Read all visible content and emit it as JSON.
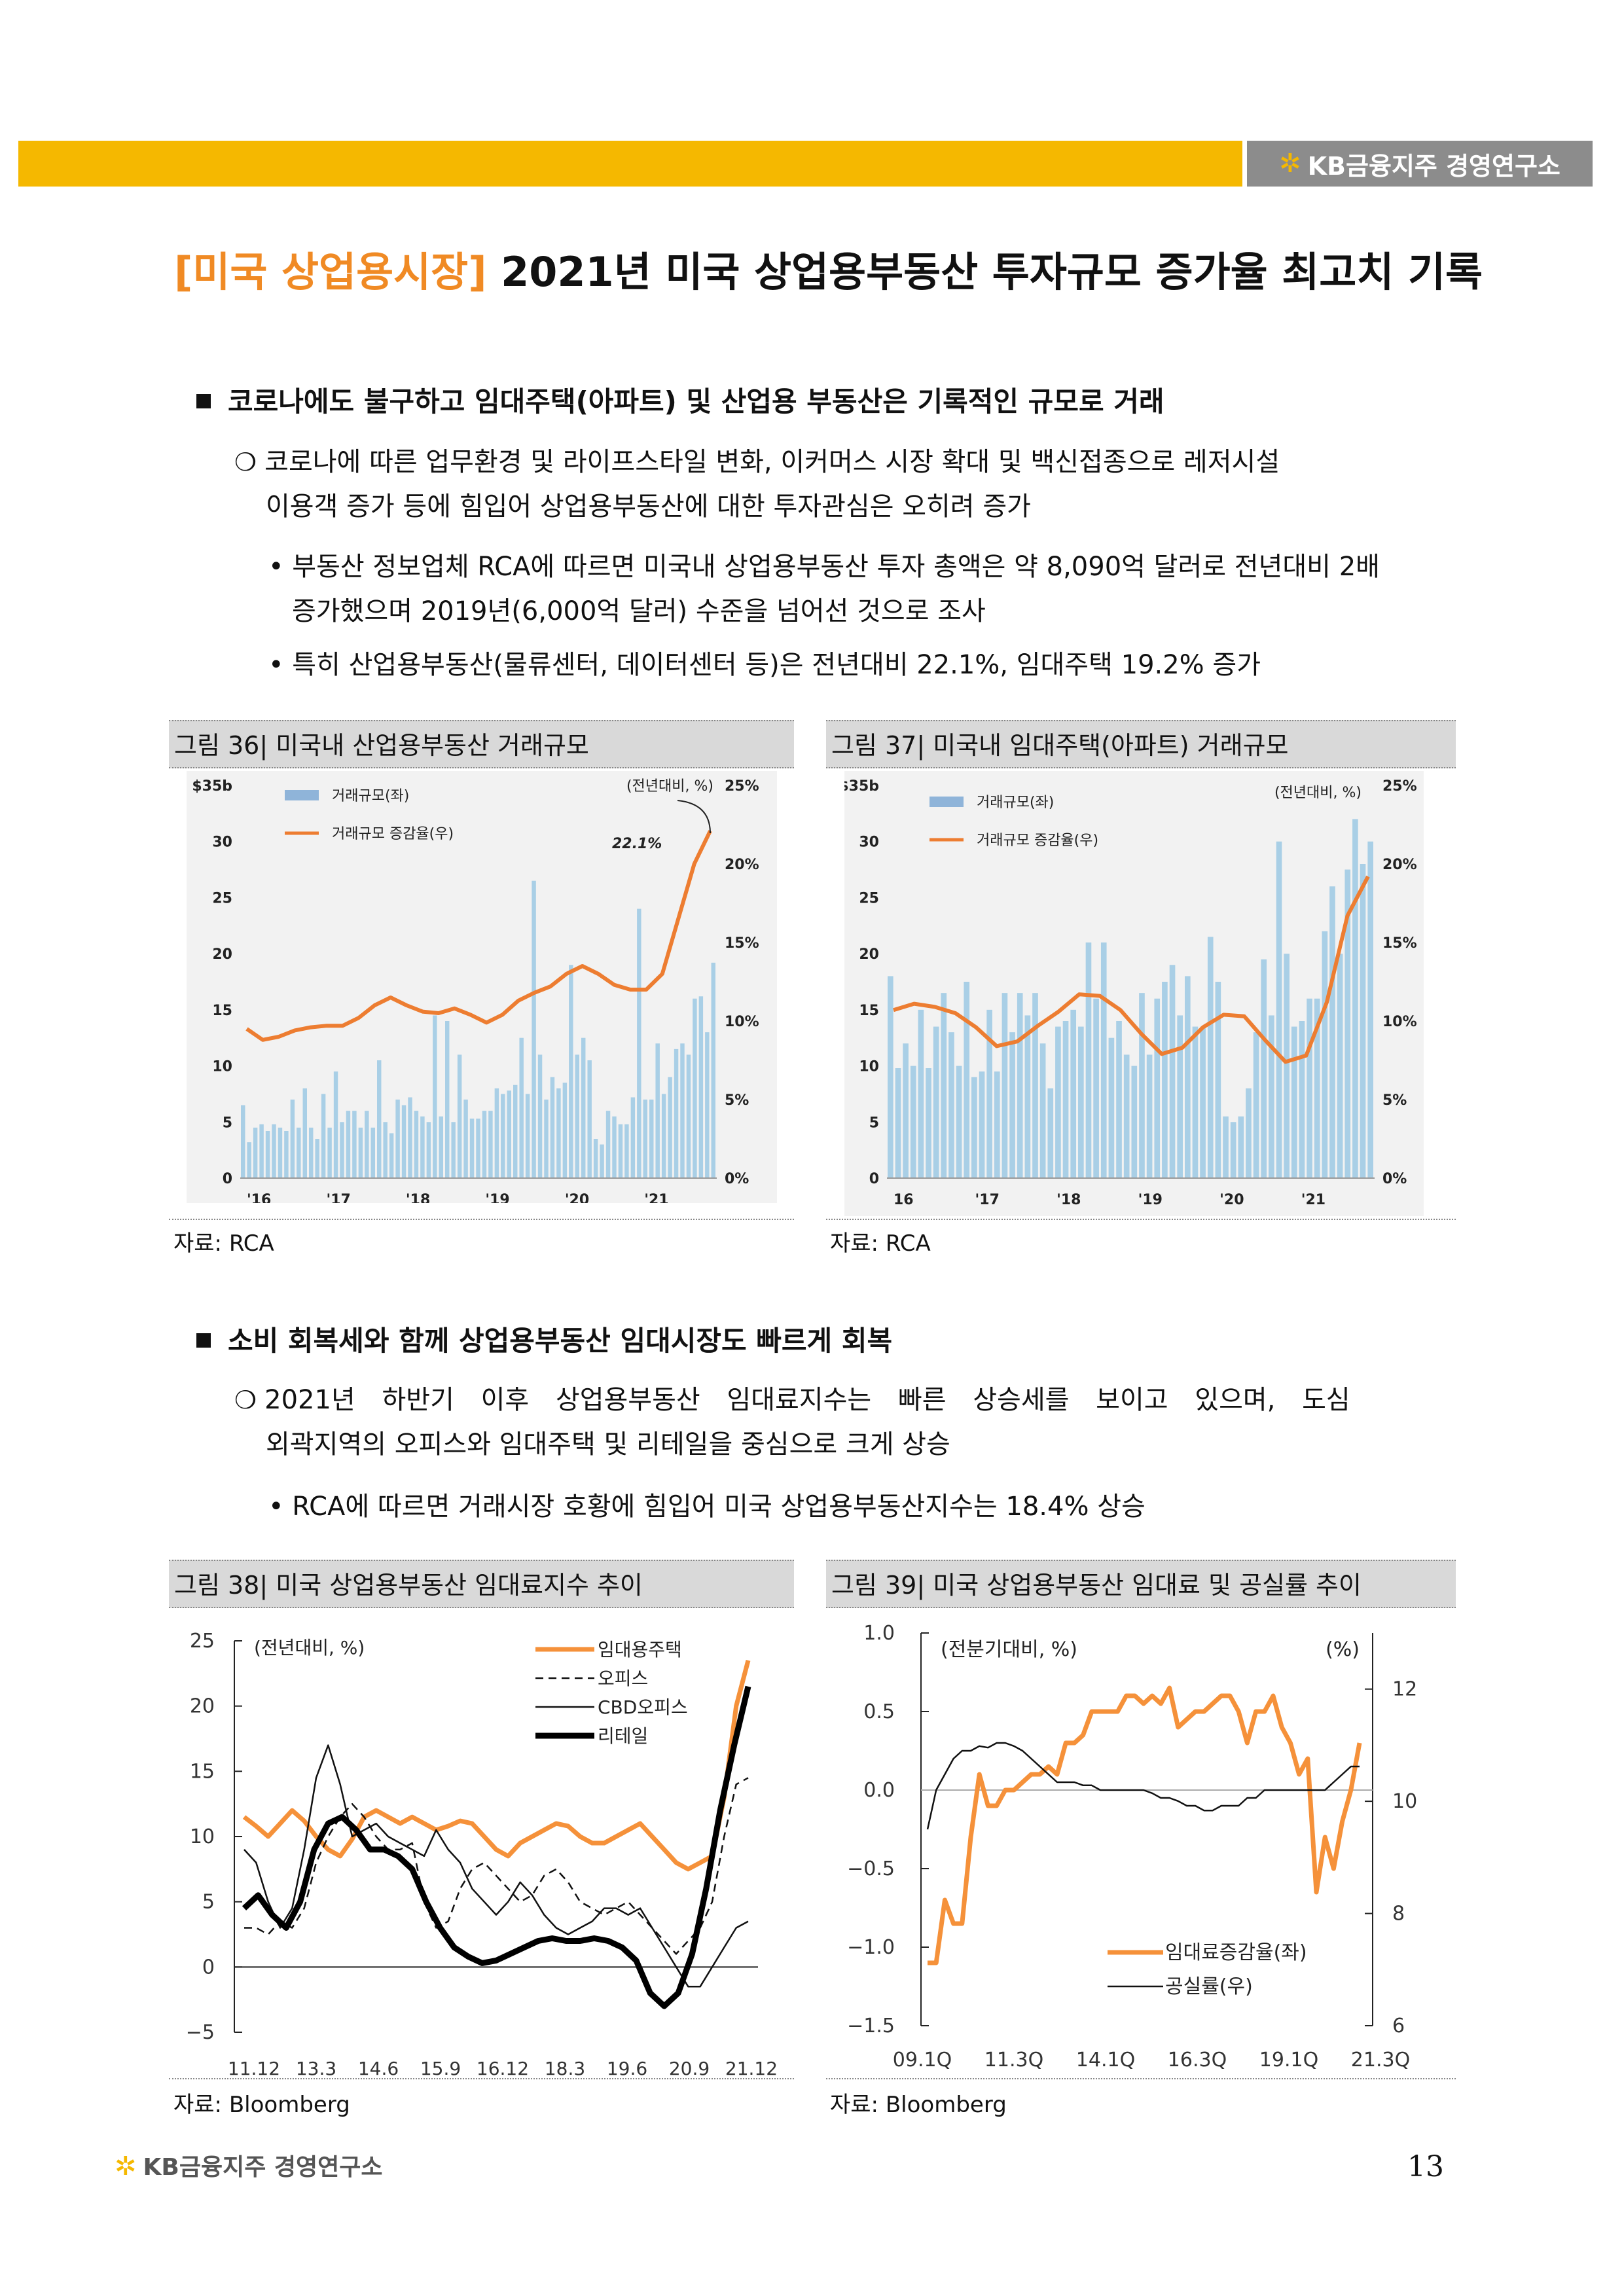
{
  "header": {
    "brand": "KB금융지주 경영연구소"
  },
  "title": {
    "tag": "[미국 상업용시장]",
    "main": " 2021년 미국 상업용부동산 투자규모 증가율 최고치 기록"
  },
  "section1": {
    "heading": "코로나에도 불구하고 임대주택(아파트) 및 산업용 부동산은 기록적인 규모로 거래",
    "para_line1": "코로나에 따른 업무환경 및 라이프스타일 변화, 이커머스 시장 확대 및 백신접종으로 레저시설",
    "para_line2": "이용객 증가 등에 힘입어 상업용부동산에 대한 투자관심은 오히려 증가",
    "bullet1_line1": "• 부동산 정보업체 RCA에 따르면 미국내 상업용부동산 투자 총액은 약 8,090억 달러로 전년대비 2배",
    "bullet1_line2": "증가했으며 2019년(6,000억 달러) 수준을 넘어선 것으로 조사",
    "bullet2": "• 특히 산업용부동산(물류센터, 데이터센터 등)은 전년대비 22.1%, 임대주택 19.2% 증가"
  },
  "fig36": {
    "caption": "그림 36| 미국내 산업용부동산 거래규모",
    "source": "자료: RCA"
  },
  "fig37": {
    "caption": "그림 37| 미국내 임대주택(아파트) 거래규모",
    "source": "자료: RCA"
  },
  "section2": {
    "heading": "소비 회복세와 함께 상업용부동산 임대시장도 빠르게 회복",
    "para_line1": "2021년 하반기 이후 상업용부동산 임대료지수는 빠른 상승세를 보이고 있으며, 도심",
    "para_line2": "외곽지역의 오피스와 임대주택 및 리테일을 중심으로 크게 상승",
    "bullet1": "• RCA에 따르면 거래시장 호황에 힘입어 미국 상업용부동산지수는 18.4% 상승"
  },
  "fig38": {
    "caption": "그림 38| 미국 상업용부동산 임대료지수 추이",
    "source": "자료: Bloomberg"
  },
  "fig39": {
    "caption": "그림 39| 미국 상업용부동산 임대료 및 공실률 추이",
    "source": "자료: Bloomberg"
  },
  "footer": {
    "brand": "KB금융지주 경영연구소",
    "page": "13"
  },
  "chart_data": [
    {
      "id": "fig36",
      "type": "bar+line",
      "x_ticks": [
        "'16",
        "'17",
        "'18",
        "'19",
        "'20",
        "'21"
      ],
      "left_ticks": [
        "$35b",
        "30",
        "25",
        "20",
        "15",
        "10",
        "5",
        "0"
      ],
      "right_ticks": [
        "25%",
        "20%",
        "15%",
        "10%",
        "5%",
        "0%"
      ],
      "ylim_left": [
        0,
        35
      ],
      "ylim_right": [
        0,
        25
      ],
      "unit_note": "(전년대비, %)",
      "annotation": "22.1%",
      "legend": [
        "거래규모(좌)",
        "거래규모 증감율(우)"
      ],
      "colors": {
        "bar": "#a9cfe6",
        "line": "#ed7d31",
        "legend_bar": "#8fb4d9"
      },
      "bars": [
        6.5,
        3.2,
        4.5,
        4.8,
        4.2,
        4.8,
        4.5,
        4.2,
        7,
        4.5,
        8,
        4.5,
        3.5,
        7.5,
        4.5,
        9.5,
        5,
        6,
        6,
        4.5,
        6,
        4.5,
        10.5,
        5,
        4,
        7,
        6.5,
        7.2,
        6,
        5.5,
        5,
        14.5,
        5.5,
        14,
        5,
        11,
        7,
        5.3,
        5.3,
        6,
        6,
        8,
        7.5,
        7.8,
        8.3,
        12.5,
        7.5,
        26.5,
        11,
        7,
        9,
        8,
        8.5,
        19,
        11,
        12.5,
        10.5,
        3.5,
        3,
        6,
        5.5,
        4.8,
        4.8,
        7.2,
        24,
        7,
        7,
        12,
        7.5,
        9,
        11.5,
        12,
        11,
        16,
        16.2,
        13,
        19.2
      ],
      "line": [
        9.5,
        8.8,
        9.0,
        9.4,
        9.6,
        9.7,
        9.7,
        10.2,
        11.0,
        11.5,
        11.0,
        10.6,
        10.5,
        10.8,
        10.4,
        9.9,
        10.4,
        11.3,
        11.8,
        12.2,
        13.0,
        13.5,
        13.0,
        12.3,
        12.0,
        12.0,
        13.0,
        16.5,
        20.0,
        22.1
      ]
    },
    {
      "id": "fig37",
      "type": "bar+line",
      "x_ticks": [
        "16",
        "'17",
        "'18",
        "'19",
        "'20",
        "'21"
      ],
      "left_ticks": [
        "$35b",
        "30",
        "25",
        "20",
        "15",
        "10",
        "5",
        "0"
      ],
      "right_ticks": [
        "25%",
        "20%",
        "15%",
        "10%",
        "5%",
        "0%"
      ],
      "ylim_left": [
        0,
        35
      ],
      "ylim_right": [
        0,
        25
      ],
      "unit_note": "(전년대비, %)",
      "legend": [
        "거래규모(좌)",
        "거래규모 증감율(우)"
      ],
      "colors": {
        "bar": "#a9cfe6",
        "line": "#ed7d31",
        "legend_bar": "#8fb4d9"
      },
      "bars": [
        18,
        9.8,
        12,
        10,
        15,
        9.8,
        13.5,
        16.5,
        13,
        10,
        17.5,
        9,
        9.5,
        15,
        9.5,
        16.5,
        13,
        16.5,
        14.5,
        16.5,
        12,
        8,
        13.5,
        14,
        15,
        13.5,
        21,
        16,
        21,
        12.5,
        14,
        11,
        10,
        16.5,
        11,
        16,
        17.5,
        19,
        14.5,
        18,
        13.5,
        13.5,
        21.5,
        17.5,
        5.5,
        5,
        5.5,
        8,
        13,
        19.5,
        14.5,
        30,
        20,
        13.5,
        14,
        16,
        16,
        22,
        26,
        20,
        27.5,
        32,
        28,
        30
      ],
      "line": [
        10.7,
        11.1,
        10.9,
        10.5,
        9.6,
        8.4,
        8.7,
        9.7,
        10.6,
        11.7,
        11.6,
        10.7,
        9.2,
        7.9,
        8.3,
        9.6,
        10.4,
        10.3,
        8.8,
        7.4,
        7.8,
        11.2,
        16.7,
        19.2
      ]
    },
    {
      "id": "fig38",
      "type": "line",
      "x_ticks": [
        "11.12",
        "13.3",
        "14.6",
        "15.9",
        "16.12",
        "18.3",
        "19.6",
        "20.9",
        "21.12"
      ],
      "y_ticks": [
        "25",
        "20",
        "15",
        "10",
        "5",
        "0",
        "−5"
      ],
      "ylim": [
        -5,
        25
      ],
      "unit_note": "(전년대비, %)",
      "series": [
        {
          "name": "임대용주택",
          "color": "#f5913a",
          "values": [
            11.5,
            10.8,
            10.0,
            11.0,
            12.0,
            11.2,
            10.0,
            9.0,
            8.5,
            9.8,
            11.5,
            12.0,
            11.5,
            11.0,
            11.5,
            11.0,
            10.5,
            10.8,
            11.2,
            11.0,
            10.0,
            9.0,
            8.5,
            9.5,
            10.0,
            10.5,
            11.0,
            10.8,
            10.0,
            9.5,
            9.5,
            10.0,
            10.5,
            11.0,
            10.0,
            9.0,
            8.0,
            7.5,
            8.0,
            8.5,
            13.0,
            20.0,
            23.5
          ]
        },
        {
          "name": "오피스",
          "color": "#111111",
          "dash": "12,8",
          "values": [
            3.0,
            3.0,
            2.5,
            3.5,
            3.0,
            4.5,
            8.0,
            10.0,
            11.5,
            12.5,
            11.5,
            10.0,
            9.0,
            9.0,
            9.5,
            5.0,
            3.0,
            3.5,
            6.0,
            7.5,
            8.0,
            7.0,
            6.0,
            5.0,
            5.5,
            7.0,
            7.5,
            6.5,
            5.0,
            4.5,
            4.0,
            4.5,
            5.0,
            4.0,
            3.0,
            2.0,
            1.0,
            2.0,
            3.0,
            5.0,
            10.0,
            14.0,
            14.5
          ]
        },
        {
          "name": "CBD오피스",
          "color": "#111111",
          "values": [
            9.0,
            8.0,
            5.0,
            3.0,
            4.5,
            9.0,
            14.5,
            17.0,
            14.0,
            10.0,
            10.5,
            11.0,
            10.0,
            9.5,
            9.0,
            8.5,
            10.5,
            9.0,
            8.0,
            6.0,
            5.0,
            4.0,
            5.0,
            6.5,
            5.5,
            4.0,
            3.0,
            2.5,
            3.0,
            3.5,
            4.5,
            4.5,
            4.0,
            4.5,
            3.0,
            1.5,
            0.0,
            -1.5,
            -1.5,
            0.0,
            1.5,
            3.0,
            3.5
          ]
        },
        {
          "name": "리테일",
          "color": "#000000",
          "bold": true,
          "values": [
            4.5,
            5.5,
            4.0,
            3.0,
            5.0,
            9.0,
            11.0,
            11.5,
            10.5,
            9.0,
            9.0,
            8.5,
            7.5,
            5.0,
            3.0,
            1.5,
            0.8,
            0.3,
            0.5,
            1.0,
            1.5,
            2.0,
            2.2,
            2.0,
            2.0,
            2.2,
            2.0,
            1.5,
            0.5,
            -2.0,
            -3.0,
            -2.0,
            1.0,
            6.0,
            12.0,
            17.0,
            21.5
          ]
        }
      ]
    },
    {
      "id": "fig39",
      "type": "line",
      "x_ticks": [
        "09.1Q",
        "11.3Q",
        "14.1Q",
        "16.3Q",
        "19.1Q",
        "21.3Q"
      ],
      "left_ticks": [
        "1.0",
        "0.5",
        "0.0",
        "−0.5",
        "−1.0",
        "−1.5"
      ],
      "right_ticks": [
        "12",
        "10",
        "8",
        "6"
      ],
      "ylim_left": [
        -1.5,
        1.0
      ],
      "ylim_right": [
        6,
        13
      ],
      "unit_note_left": "(전분기대비, %)",
      "unit_note_right": "(%)",
      "series": [
        {
          "name": "임대료증감율(좌)",
          "color": "#f5913a",
          "axis": "left",
          "values": [
            -1.1,
            -1.1,
            -0.7,
            -0.85,
            -0.85,
            -0.3,
            0.1,
            -0.1,
            -0.1,
            0.0,
            0.0,
            0.05,
            0.1,
            0.1,
            0.15,
            0.1,
            0.3,
            0.3,
            0.35,
            0.5,
            0.5,
            0.5,
            0.5,
            0.6,
            0.6,
            0.55,
            0.6,
            0.55,
            0.65,
            0.4,
            0.45,
            0.5,
            0.5,
            0.55,
            0.6,
            0.6,
            0.5,
            0.3,
            0.5,
            0.5,
            0.6,
            0.4,
            0.3,
            0.1,
            0.2,
            -0.65,
            -0.3,
            -0.5,
            -0.2,
            0.0,
            0.3
          ]
        },
        {
          "name": "공실률(우)",
          "color": "#111111",
          "axis": "left",
          "values": [
            -0.25,
            0.0,
            0.1,
            0.2,
            0.25,
            0.25,
            0.28,
            0.27,
            0.3,
            0.3,
            0.28,
            0.25,
            0.2,
            0.15,
            0.1,
            0.05,
            0.05,
            0.05,
            0.03,
            0.03,
            0.0,
            0.0,
            0.0,
            0.0,
            0.0,
            0.0,
            -0.02,
            -0.05,
            -0.05,
            -0.07,
            -0.1,
            -0.1,
            -0.13,
            -0.13,
            -0.1,
            -0.1,
            -0.1,
            -0.05,
            -0.05,
            0.0,
            0.0,
            0.0,
            0.0,
            0.0,
            0.0,
            0.0,
            0.0,
            0.05,
            0.1,
            0.15,
            0.15
          ]
        }
      ]
    }
  ]
}
